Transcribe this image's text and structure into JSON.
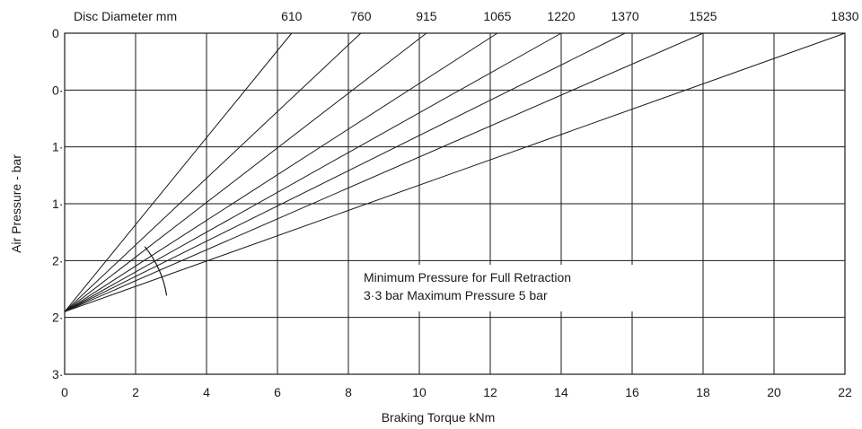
{
  "chart_data": {
    "type": "line",
    "title": "",
    "xlabel": "Braking Torque kNm",
    "ylabel": "Air Pressure - bar",
    "grid": true,
    "x_ticks": [
      0,
      2,
      4,
      6,
      8,
      10,
      12,
      14,
      16,
      18,
      20,
      22
    ],
    "xlim": [
      0,
      22
    ],
    "y_tick_labels": [
      "0",
      "0·",
      "1·",
      "1·",
      "2·",
      "2·",
      "3·"
    ],
    "y_tick_values": [
      0,
      0.5,
      1.0,
      1.5,
      2.0,
      2.5,
      3.0
    ],
    "ylim": [
      0,
      3.0
    ],
    "y_inverted": true,
    "top_axis": {
      "label": "Disc Diameter mm",
      "series_labels": [
        "610",
        "760",
        "915",
        "1065",
        "1220",
        "1370",
        "1525",
        "1830"
      ]
    },
    "series": [
      {
        "name": "610",
        "points": [
          [
            0,
            2.45
          ],
          [
            6.4,
            0
          ]
        ]
      },
      {
        "name": "760",
        "points": [
          [
            0,
            2.45
          ],
          [
            8.35,
            0
          ]
        ]
      },
      {
        "name": "915",
        "points": [
          [
            0,
            2.45
          ],
          [
            10.2,
            0
          ]
        ]
      },
      {
        "name": "1065",
        "points": [
          [
            0,
            2.45
          ],
          [
            12.2,
            0
          ]
        ]
      },
      {
        "name": "1220",
        "points": [
          [
            0,
            2.45
          ],
          [
            14.0,
            0
          ]
        ]
      },
      {
        "name": "1370",
        "points": [
          [
            0,
            2.45
          ],
          [
            15.8,
            0
          ]
        ]
      },
      {
        "name": "1525",
        "points": [
          [
            0,
            2.45
          ],
          [
            18.0,
            0
          ]
        ]
      },
      {
        "name": "1830",
        "points": [
          [
            0,
            2.45
          ],
          [
            22.0,
            0
          ]
        ]
      }
    ],
    "annotations": [
      "Minimum Pressure for Full Retraction",
      "3·3 bar Maximum Pressure 5 bar"
    ]
  }
}
